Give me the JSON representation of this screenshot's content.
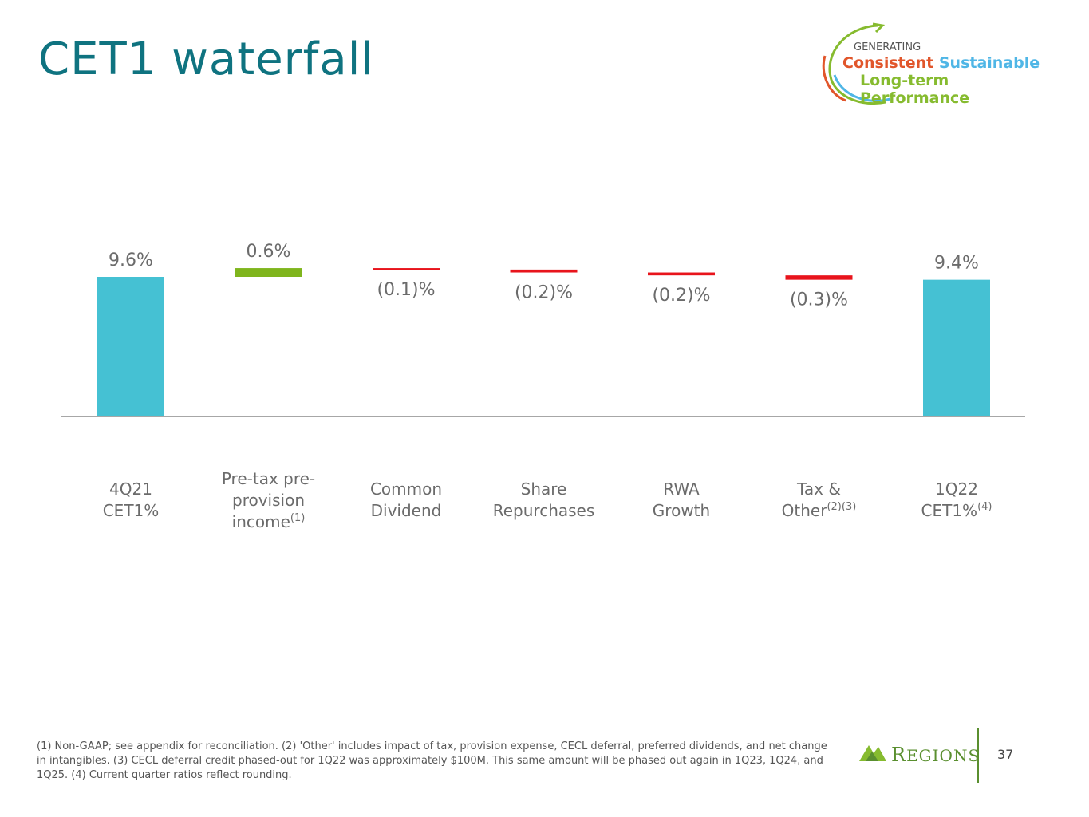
{
  "title": "CET1 waterfall",
  "badge": {
    "line1": "GENERATING",
    "word_consistent": "Consistent",
    "word_sustainable": "Sustainable",
    "line3": "Long-term Performance"
  },
  "chart_data": {
    "type": "bar",
    "subtype": "waterfall",
    "categories": [
      "4Q21 CET1%",
      "Pre-tax pre-provision income(1)",
      "Common Dividend",
      "Share Repurchases",
      "RWA Growth",
      "Tax & Other(2)(3)",
      "1Q22 CET1%(4)"
    ],
    "values": [
      9.6,
      0.6,
      -0.1,
      -0.2,
      -0.2,
      -0.3,
      9.4
    ],
    "value_labels": [
      "9.6%",
      "0.6%",
      "(0.1)%",
      "(0.2)%",
      "(0.2)%",
      "(0.3)%",
      "9.4%"
    ],
    "kinds": [
      "total",
      "increase",
      "decrease",
      "decrease",
      "decrease",
      "decrease",
      "total"
    ],
    "colors": {
      "total": "#45c1d3",
      "increase": "#7fb51d",
      "decrease": "#e8141c"
    },
    "title": "",
    "xlabel": "",
    "ylabel": "",
    "ylim": [
      0,
      10.5
    ],
    "grid": false,
    "legend": "none"
  },
  "categories_display": [
    {
      "lines": [
        "4Q21",
        "CET1%"
      ],
      "sup": ""
    },
    {
      "lines": [
        "Pre-tax pre-",
        "provision",
        "income"
      ],
      "sup": "(1)"
    },
    {
      "lines": [
        "Common",
        "Dividend"
      ],
      "sup": ""
    },
    {
      "lines": [
        "Share",
        "Repurchases"
      ],
      "sup": ""
    },
    {
      "lines": [
        "RWA",
        "Growth"
      ],
      "sup": ""
    },
    {
      "lines": [
        "Tax &",
        "Other"
      ],
      "sup": "(2)(3)"
    },
    {
      "lines": [
        "1Q22",
        "CET1%"
      ],
      "sup": "(4)"
    }
  ],
  "footnote": "(1) Non-GAAP; see appendix for reconciliation. (2) 'Other' includes impact of tax, provision expense, CECL deferral, preferred dividends, and net change in intangibles. (3) CECL deferral credit phased-out for 1Q22 was approximately $100M. This same amount will be phased out again in 1Q23, 1Q24, and 1Q25. (4) Current quarter ratios reflect rounding.",
  "logo": {
    "text": "REGIONS",
    "icon": "regions-pyramid-icon"
  },
  "page_number": "37"
}
